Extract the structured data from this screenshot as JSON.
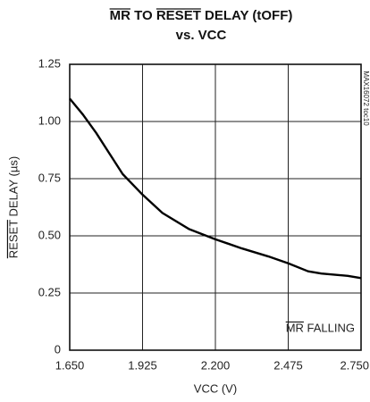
{
  "chart_data": {
    "type": "line",
    "title": "MR TO RESET DELAY (tOFF)",
    "subtitle": "vs. VCC",
    "x_label": "VCC (V)",
    "y_label": "RESET DELAY (µs)",
    "annotation": "MR FALLING",
    "figure_id": "MAX16072 toc10",
    "x": [
      1.65,
      1.7,
      1.75,
      1.8,
      1.85,
      1.925,
      2.0,
      2.1,
      2.2,
      2.3,
      2.4,
      2.475,
      2.55,
      2.6,
      2.7,
      2.75
    ],
    "series": [
      {
        "name": "RESET DELAY",
        "color": "#000000",
        "values": [
          1.1,
          1.03,
          0.95,
          0.86,
          0.77,
          0.68,
          0.6,
          0.53,
          0.485,
          0.445,
          0.41,
          0.38,
          0.345,
          0.335,
          0.325,
          0.315
        ]
      }
    ],
    "xlim": [
      1.65,
      2.75
    ],
    "ylim": [
      0,
      1.25
    ],
    "xticks": [
      {
        "value": 1.65,
        "label": "1.650"
      },
      {
        "value": 1.925,
        "label": "1.925"
      },
      {
        "value": 2.2,
        "label": "2.200"
      },
      {
        "value": 2.475,
        "label": "2.475"
      },
      {
        "value": 2.75,
        "label": "2.750"
      }
    ],
    "yticks": [
      0,
      0.25,
      {
        "value": 0.5,
        "label": "0.50"
      },
      0.75,
      {
        "value": 1.0,
        "label": "1.00"
      },
      1.25
    ],
    "grid": true
  }
}
